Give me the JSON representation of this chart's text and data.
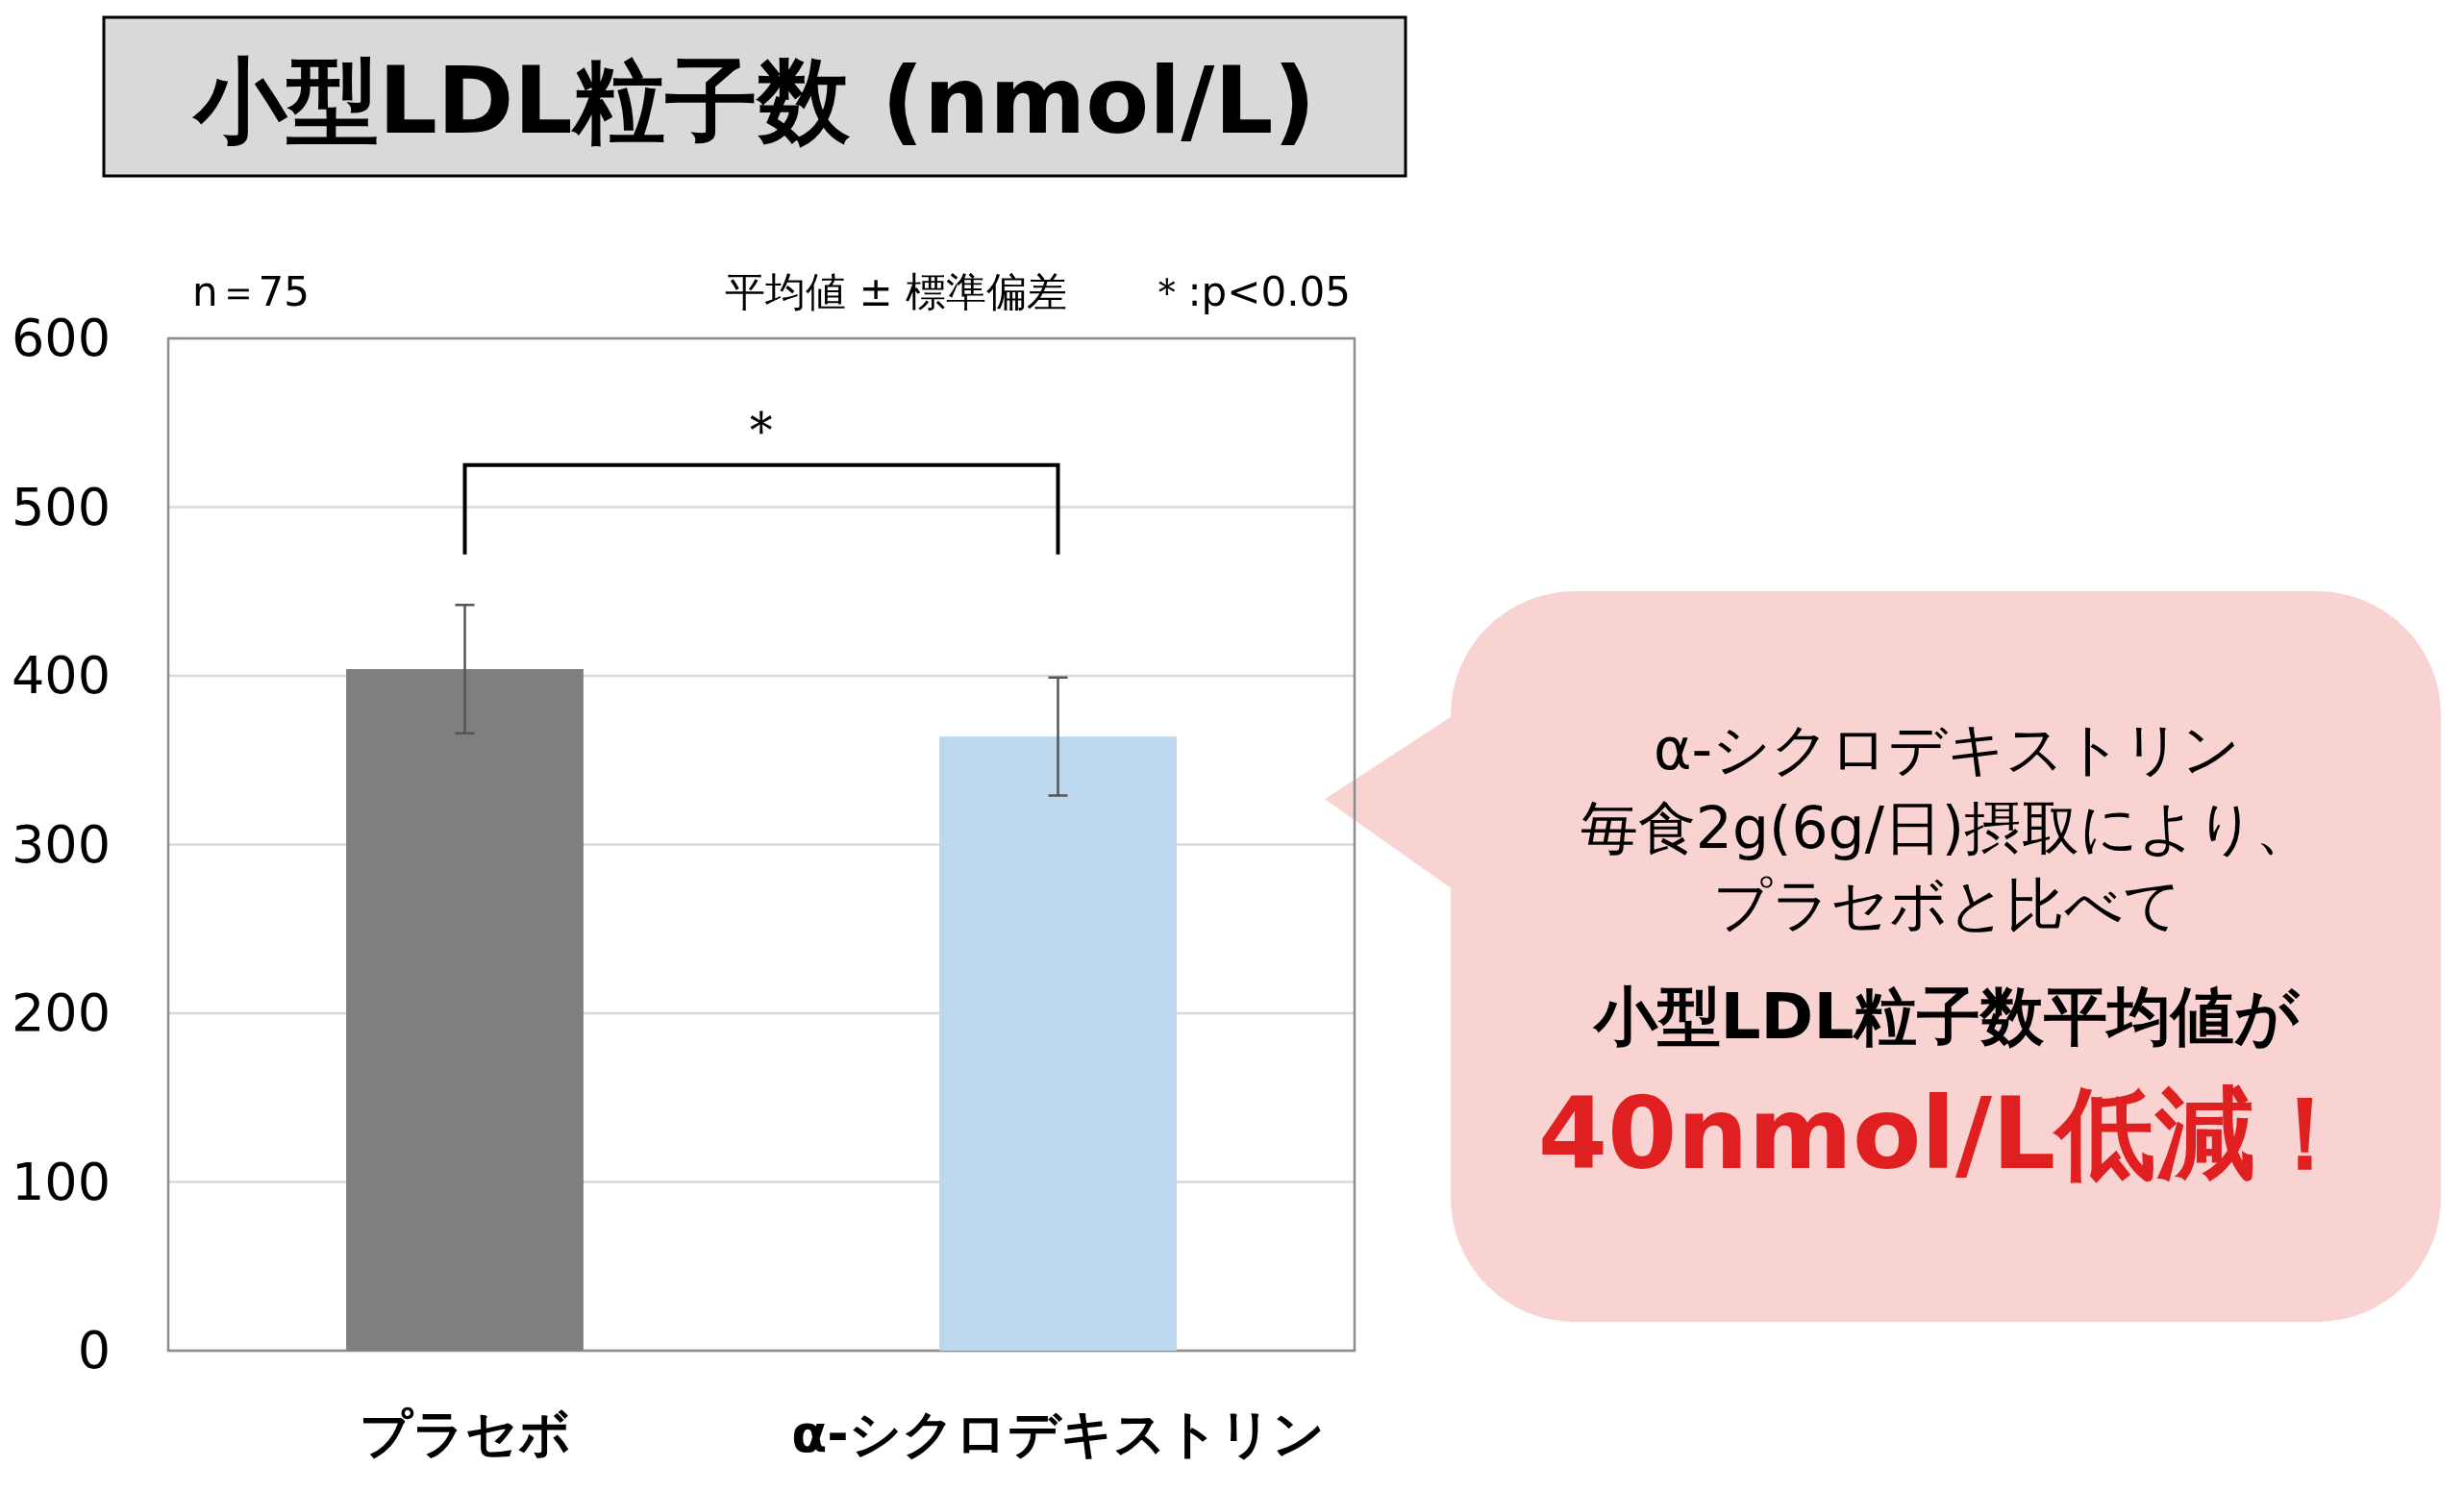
{
  "chart_data": {
    "type": "bar",
    "title": "小型LDL粒子数 (nmol/L)",
    "categories": [
      "プラセボ",
      "α-シクロデキストリン"
    ],
    "values": [
      404,
      364
    ],
    "colors": [
      "#7f7f7f",
      "#bdd7ee"
    ],
    "errors": [
      [
        366,
        442
      ],
      [
        329,
        399
      ]
    ],
    "ylim": [
      0,
      600
    ],
    "yticks": [
      0,
      100,
      200,
      300,
      400,
      500,
      600
    ],
    "grid": "y",
    "annotations": [
      "n＝75",
      "平均値 ± 標準偏差",
      "＊:p<0.05",
      "＊",
      "α-シクロデキストリン",
      "毎食2g(6g/日)摂取により、",
      "プラセボと比べて",
      "小型LDL粒子数平均値が",
      "40nmol/L低減！"
    ]
  }
}
